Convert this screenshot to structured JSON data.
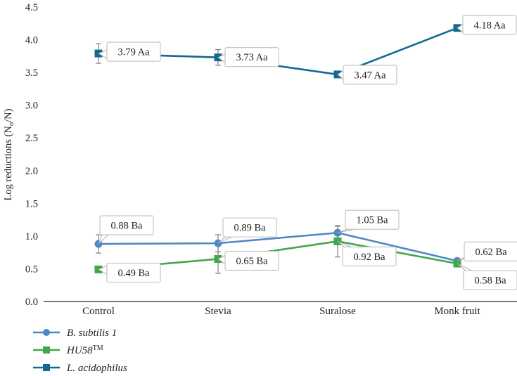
{
  "figure": {
    "description": "Line chart of log reductions of probiotic strains under different sweeteners"
  },
  "chart_data": {
    "type": "line",
    "categories": [
      "Control",
      "Stevia",
      "Suralose",
      "Monk fruit"
    ],
    "series": [
      {
        "name": "B. subtilis 1",
        "name_sup": "",
        "marker": "circle",
        "color": "#4e88c6",
        "values": [
          0.88,
          0.89,
          1.05,
          0.62
        ],
        "errors": [
          0.14,
          0.13,
          0.1,
          0.02
        ],
        "point_labels": [
          "0.88 Ba",
          "0.89 Ba",
          "1.05 Ba",
          "0.62 Ba"
        ],
        "label_offsets": [
          [
            2,
            -40
          ],
          [
            7,
            -36
          ],
          [
            11,
            -32
          ],
          [
            10,
            -27
          ]
        ]
      },
      {
        "name": "HU58",
        "name_sup": "TM",
        "marker": "square",
        "color": "#42a64b",
        "values": [
          0.49,
          0.65,
          0.92,
          0.58
        ],
        "errors": [
          0.02,
          0.22,
          0.24,
          0.02
        ],
        "point_labels": [
          "0.49 Ba",
          "0.65 Ba",
          "0.92 Ba",
          "0.58 Ba"
        ],
        "label_offsets": [
          [
            12,
            -9
          ],
          [
            10,
            -11
          ],
          [
            7,
            8
          ],
          [
            9,
            10
          ]
        ]
      },
      {
        "name": "L. acidophilus",
        "name_sup": "",
        "marker": "square",
        "color": "#13698f",
        "values": [
          3.79,
          3.73,
          3.47,
          4.18
        ],
        "errors": [
          0.15,
          0.12,
          0.05,
          0.02
        ],
        "point_labels": [
          "3.79 Aa",
          "3.73 Aa",
          "3.47 Aa",
          "4.18 Aa"
        ],
        "label_offsets": [
          [
            12,
            -16
          ],
          [
            10,
            -14
          ],
          [
            8,
            -13
          ],
          [
            8,
            -18
          ]
        ]
      }
    ],
    "ylabel": {
      "prefix": "Log reductions (N",
      "sub": "o",
      "suffix": "/N)"
    },
    "ylim": [
      0.0,
      4.5
    ],
    "ytick_step": 0.5,
    "ytick_labels": [
      "0.0",
      "0.5",
      "1.0",
      "1.5",
      "2.0",
      "2.5",
      "3.0",
      "3.5",
      "4.0",
      "4.5"
    ],
    "grid": false,
    "legend_position": "bottom-left",
    "colors": {
      "axis": "#4d4d4d",
      "error_bar": "#808080",
      "callout_border": "#bfbfbf",
      "callout_fill": "#ffffff",
      "leader": "#a6a6a6",
      "text": "#1f1f1f"
    }
  }
}
